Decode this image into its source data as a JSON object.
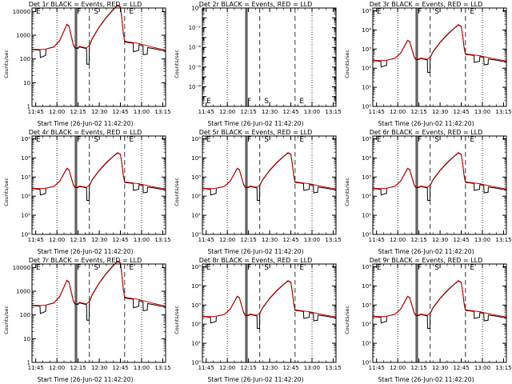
{
  "chart_data": [
    {
      "type": "line",
      "title": "Det 1r BLACK = Events, RED = LLD",
      "xlabel": "Start Time (26-Jun-02 11:42:20)",
      "ylabel": "Counts/sec",
      "yscale": "log",
      "y_ticks": [
        "1",
        "10",
        "100",
        "1000",
        "10000"
      ],
      "ylim": [
        1,
        14000
      ],
      "has_data": true
    },
    {
      "type": "line",
      "title": "Det 2r BLACK = Events, RED = LLD",
      "xlabel": "Start Time (26-Jun-02 11:42:20)",
      "ylabel": "Counts/sec",
      "yscale": "log",
      "y_ticks": [
        "10⁰",
        "10⁻²",
        "10⁻⁴",
        "10⁻⁶",
        "10⁻⁸"
      ],
      "ylim": [
        1e-10,
        1
      ],
      "has_data": false
    },
    {
      "type": "line",
      "title": "Det 3r BLACK = Events, RED = LLD",
      "xlabel": "Start Time (26-Jun-02 11:42:20)",
      "ylabel": "Counts/sec",
      "yscale": "log",
      "y_ticks": [
        "10⁰",
        "10¹",
        "10²",
        "10³",
        "10⁴",
        "10⁵"
      ],
      "ylim": [
        1,
        140000
      ],
      "has_data": true
    },
    {
      "type": "line",
      "title": "Det 4r BLACK = Events, RED = LLD",
      "xlabel": "Start Time (26-Jun-02 11:42:20)",
      "ylabel": "Counts/sec",
      "yscale": "log",
      "y_ticks": [
        "10⁰",
        "10¹",
        "10²",
        "10³",
        "10⁴",
        "10⁵"
      ],
      "ylim": [
        1,
        140000
      ],
      "has_data": true
    },
    {
      "type": "line",
      "title": "Det 5r BLACK = Events, RED = LLD",
      "xlabel": "Start Time (26-Jun-02 11:42:20)",
      "ylabel": "Counts/sec",
      "yscale": "log",
      "y_ticks": [
        "10⁰",
        "10¹",
        "10²",
        "10³",
        "10⁴",
        "10⁵"
      ],
      "ylim": [
        1,
        140000
      ],
      "has_data": true
    },
    {
      "type": "line",
      "title": "Det 6r BLACK = Events, RED = LLD",
      "xlabel": "Start Time (26-Jun-02 11:42:20)",
      "ylabel": "Counts/sec",
      "yscale": "log",
      "y_ticks": [
        "10⁰",
        "10¹",
        "10²",
        "10³",
        "10⁴",
        "10⁵"
      ],
      "ylim": [
        1,
        140000
      ],
      "has_data": true
    },
    {
      "type": "line",
      "title": "Det 7r BLACK = Events, RED = LLD",
      "xlabel": "Start Time (26-Jun-02 11:42:20)",
      "ylabel": "Counts/sec",
      "yscale": "log",
      "y_ticks": [
        "1",
        "10",
        "100",
        "1000",
        "10000"
      ],
      "ylim": [
        1,
        14000
      ],
      "has_data": true
    },
    {
      "type": "line",
      "title": "Det 8r BLACK = Events, RED = LLD",
      "xlabel": "Start Time (26-Jun-02 11:42:20)",
      "ylabel": "Counts/sec",
      "yscale": "log",
      "y_ticks": [
        "10⁰",
        "10¹",
        "10²",
        "10³",
        "10⁴",
        "10⁵"
      ],
      "ylim": [
        1,
        140000
      ],
      "has_data": true
    },
    {
      "type": "line",
      "title": "Det 9r BLACK = Events, RED = LLD",
      "xlabel": "Start Time (26-Jun-02 11:42:20)",
      "ylabel": "Counts/sec",
      "yscale": "log",
      "y_ticks": [
        "10⁰",
        "10¹",
        "10²",
        "10³",
        "10⁴",
        "10⁵"
      ],
      "ylim": [
        1,
        140000
      ],
      "has_data": true
    }
  ],
  "shared": {
    "x_ticks": [
      "11:45",
      "12:00",
      "12:15",
      "12:30",
      "12:45",
      "13:00",
      "13:15"
    ],
    "x_range_minutes": [
      42.33,
      137
    ],
    "dotted_lines_minutes": [
      60,
      120
    ],
    "solid_lines_minutes": [
      73,
      74
    ],
    "dashed_lines_minutes": [
      83,
      108
    ],
    "marker_labels": [
      {
        "text": "E",
        "minute": 44
      },
      {
        "text": "F",
        "minute": 73
      },
      {
        "text": "S",
        "minute": 85
      },
      {
        "text": "E",
        "minute": 110
      }
    ],
    "series": [
      {
        "name": "BLACK = Events",
        "color": "#000000",
        "points": [
          [
            42.33,
            250
          ],
          [
            48,
            230
          ],
          [
            48.2,
            115
          ],
          [
            52,
            140
          ],
          [
            52.2,
            260
          ],
          [
            58,
            320
          ],
          [
            62,
            600
          ],
          [
            65,
            1500
          ],
          [
            67,
            2800
          ],
          [
            68.5,
            2400
          ],
          [
            70,
            1000
          ],
          [
            71.5,
            400
          ],
          [
            72.5,
            300
          ],
          [
            73,
            280
          ],
          [
            75,
            280
          ],
          [
            76,
            320
          ],
          [
            78,
            300
          ],
          [
            79,
            290
          ],
          [
            80,
            280
          ],
          [
            81,
            270
          ],
          [
            81.2,
            60
          ],
          [
            82.8,
            60
          ],
          [
            83,
            350
          ],
          [
            85,
            700
          ],
          [
            90,
            2200
          ],
          [
            95,
            5500
          ],
          [
            100,
            12000
          ],
          [
            103,
            18000
          ],
          [
            105,
            15000
          ],
          [
            106,
            5000
          ],
          [
            107,
            1200
          ],
          [
            108,
            520
          ],
          [
            112,
            480
          ],
          [
            114,
            460
          ],
          [
            114.2,
            200
          ],
          [
            118,
            230
          ],
          [
            118.2,
            400
          ],
          [
            121,
            360
          ],
          [
            121.2,
            150
          ],
          [
            124,
            160
          ],
          [
            124.2,
            300
          ],
          [
            127,
            280
          ],
          [
            130,
            260
          ],
          [
            134,
            230
          ],
          [
            137,
            220
          ]
        ]
      },
      {
        "name": "RED = LLD",
        "color": "#d40000",
        "points": [
          [
            42.33,
            260
          ],
          [
            48,
            250
          ],
          [
            52,
            260
          ],
          [
            58,
            330
          ],
          [
            62,
            620
          ],
          [
            65,
            1550
          ],
          [
            67,
            2900
          ],
          [
            68.5,
            2500
          ],
          [
            70,
            1050
          ],
          [
            71.5,
            420
          ],
          [
            72.5,
            320
          ],
          [
            73,
            300
          ],
          [
            75,
            300
          ],
          [
            76,
            340
          ],
          [
            78,
            320
          ],
          [
            79,
            310
          ],
          [
            80,
            300
          ],
          [
            81,
            290
          ],
          [
            83,
            380
          ],
          [
            85,
            740
          ],
          [
            90,
            2300
          ],
          [
            95,
            5800
          ],
          [
            100,
            12500
          ],
          [
            103,
            19000
          ],
          [
            105,
            15500
          ],
          [
            106,
            5200
          ],
          [
            107,
            1300
          ],
          [
            108,
            560
          ],
          [
            112,
            510
          ],
          [
            114,
            490
          ],
          [
            118,
            450
          ],
          [
            121,
            400
          ],
          [
            124,
            360
          ],
          [
            127,
            320
          ],
          [
            130,
            290
          ],
          [
            134,
            260
          ],
          [
            137,
            240
          ]
        ]
      }
    ]
  }
}
